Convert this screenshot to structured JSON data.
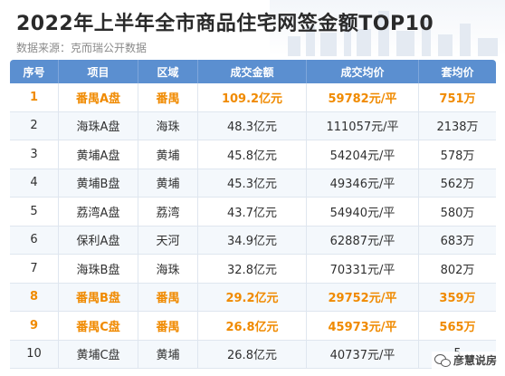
{
  "header": {
    "title": "2022年上半年全市商品住宅网签金额TOP10",
    "source": "数据来源：克而瑞公开数据"
  },
  "table": {
    "columns": [
      "序号",
      "项目",
      "区域",
      "成交金额",
      "成交均价",
      "套均价"
    ],
    "rows": [
      {
        "rank": "1",
        "project": "番禺A盘",
        "district": "番禺",
        "amount": "109.2亿元",
        "avg_price": "59782元/平",
        "unit_price": "751万",
        "highlight": true
      },
      {
        "rank": "2",
        "project": "海珠A盘",
        "district": "海珠",
        "amount": "48.3亿元",
        "avg_price": "111057元/平",
        "unit_price": "2138万",
        "highlight": false
      },
      {
        "rank": "3",
        "project": "黄埔A盘",
        "district": "黄埔",
        "amount": "45.8亿元",
        "avg_price": "54204元/平",
        "unit_price": "578万",
        "highlight": false
      },
      {
        "rank": "4",
        "project": "黄埔B盘",
        "district": "黄埔",
        "amount": "45.3亿元",
        "avg_price": "49346元/平",
        "unit_price": "562万",
        "highlight": false
      },
      {
        "rank": "5",
        "project": "荔湾A盘",
        "district": "荔湾",
        "amount": "43.7亿元",
        "avg_price": "54940元/平",
        "unit_price": "580万",
        "highlight": false
      },
      {
        "rank": "6",
        "project": "保利A盘",
        "district": "天河",
        "amount": "34.9亿元",
        "avg_price": "62887元/平",
        "unit_price": "683万",
        "highlight": false
      },
      {
        "rank": "7",
        "project": "海珠B盘",
        "district": "海珠",
        "amount": "32.8亿元",
        "avg_price": "70331元/平",
        "unit_price": "802万",
        "highlight": false
      },
      {
        "rank": "8",
        "project": "番禺B盘",
        "district": "番禺",
        "amount": "29.2亿元",
        "avg_price": "29752元/平",
        "unit_price": "359万",
        "highlight": true
      },
      {
        "rank": "9",
        "project": "番禺C盘",
        "district": "番禺",
        "amount": "26.8亿元",
        "avg_price": "45973元/平",
        "unit_price": "565万",
        "highlight": true
      },
      {
        "rank": "10",
        "project": "黄埔C盘",
        "district": "黄埔",
        "amount": "26.8亿元",
        "avg_price": "40737元/平",
        "unit_price": "5",
        "highlight": false
      }
    ]
  },
  "watermark": {
    "icon": "wechat-icon",
    "text": "彦慧说房"
  },
  "colors": {
    "header_bg": "#5b8fd0",
    "highlight_text": "#f08a00"
  }
}
